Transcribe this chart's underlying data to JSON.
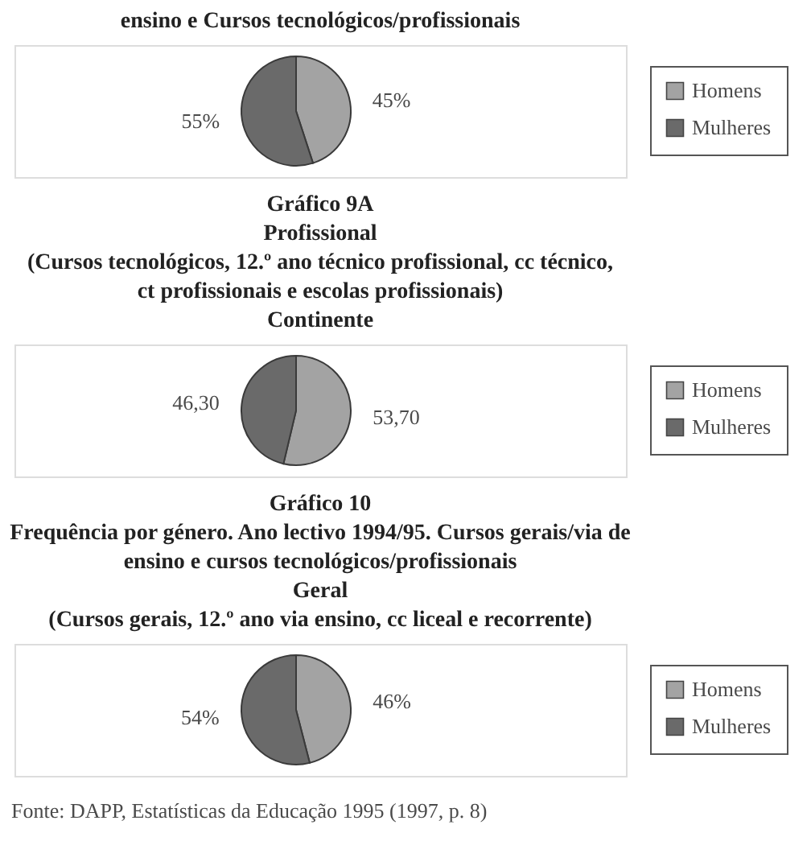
{
  "chart_data": [
    {
      "type": "pie",
      "title": "ensino e Cursos tecnológicos/profissionais",
      "categories": [
        "Homens",
        "Mulheres"
      ],
      "values": [
        45,
        55
      ],
      "colors": [
        "#a3a3a3",
        "#6a6a6a"
      ],
      "value_labels": [
        "45%",
        "55%"
      ],
      "legend": "right"
    },
    {
      "type": "pie",
      "title": "Gráfico 9A",
      "subtitle": "Profissional\n(Cursos tecnológicos, 12.º ano técnico profissional, cc técnico, ct profissionais e escolas profissionais)\nContinente",
      "categories": [
        "Homens",
        "Mulheres"
      ],
      "values": [
        53.7,
        46.3
      ],
      "colors": [
        "#a3a3a3",
        "#6a6a6a"
      ],
      "value_labels": [
        "53,70",
        "46,30"
      ],
      "legend": "right"
    },
    {
      "type": "pie",
      "title": "Gráfico 10",
      "subtitle": "Frequência por género. Ano lectivo 1994/95. Cursos gerais/via de ensino e cursos tecnológicos/profissionais\nGeral\n(Cursos gerais, 12.º ano via ensino, cc liceal e recorrente)",
      "categories": [
        "Homens",
        "Mulheres"
      ],
      "values": [
        46,
        54
      ],
      "colors": [
        "#a3a3a3",
        "#6a6a6a"
      ],
      "value_labels": [
        "46%",
        "54%"
      ],
      "legend": "right",
      "annotations": [
        "Fonte: DAPP, Estatísticas da Educação 1995 (1997, p. 8)"
      ]
    }
  ]
}
